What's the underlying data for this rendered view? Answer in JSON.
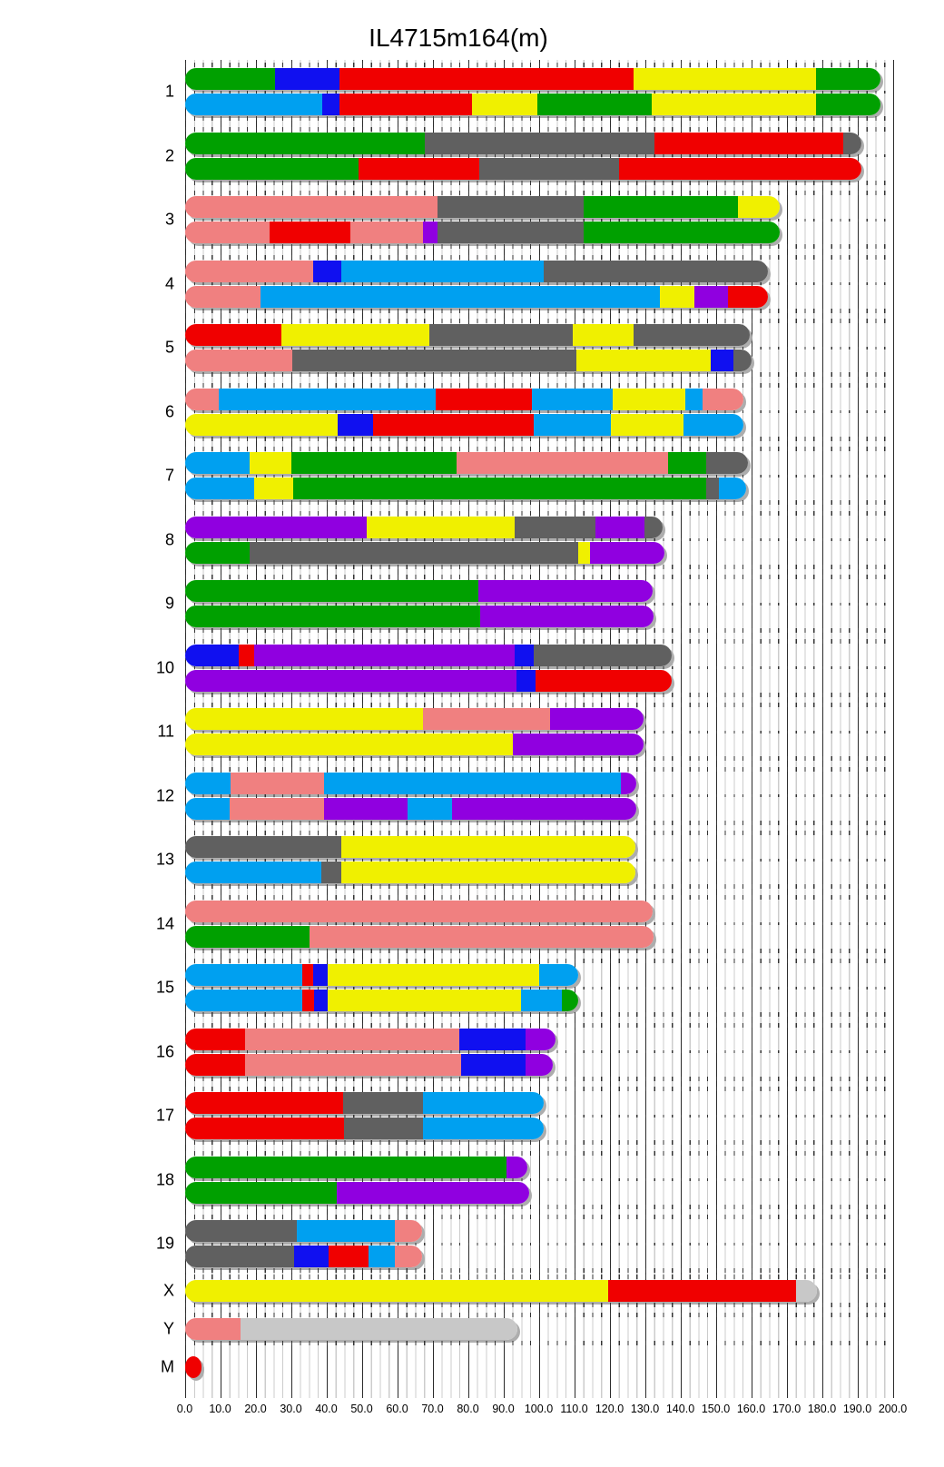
{
  "title": "IL4715m164(m)",
  "axis": {
    "min": 0,
    "max": 200,
    "major_step": 10,
    "minor_step": 2.5,
    "tick_labels": [
      "0.0",
      "10.0",
      "20.0",
      "30.0",
      "40.0",
      "50.0",
      "60.0",
      "70.0",
      "80.0",
      "90.0",
      "100.0",
      "110.0",
      "120.0",
      "130.0",
      "140.0",
      "150.0",
      "160.0",
      "170.0",
      "180.0",
      "190.0",
      "200.0"
    ]
  },
  "palette": {
    "AJ": "#F0F000",
    "B6": "#606060",
    "129": "#F08080",
    "NOD": "#1010F0",
    "NZO": "#00A0F0",
    "CAST": "#00A000",
    "PWK": "#F00000",
    "WSB": "#9000E0",
    "UNK": "#C8C8C8",
    "shadow": "#ADADAD"
  },
  "chart_data": {
    "type": "other",
    "subtype": "karyotype-haplotype-painting",
    "title": "IL4715m164(m)",
    "x_axis_range": [
      0,
      200
    ],
    "grid": true,
    "chromosomes": [
      {
        "name": "1",
        "hap1": [
          {
            "f": "CAST",
            "s": 0,
            "e": 25.6
          },
          {
            "f": "NOD",
            "s": 25.6,
            "e": 43.6
          },
          {
            "f": "PWK",
            "s": 43.6,
            "e": 126.9
          },
          {
            "f": "AJ",
            "s": 126.9,
            "e": 178.4
          },
          {
            "f": "CAST",
            "s": 178.4,
            "e": 196.6
          }
        ],
        "hap2": [
          {
            "f": "NZO",
            "s": 0,
            "e": 38.9
          },
          {
            "f": "NOD",
            "s": 38.9,
            "e": 43.6
          },
          {
            "f": "PWK",
            "s": 43.6,
            "e": 81.2
          },
          {
            "f": "AJ",
            "s": 81.2,
            "e": 99.7
          },
          {
            "f": "CAST",
            "s": 99.7,
            "e": 132
          },
          {
            "f": "AJ",
            "s": 132,
            "e": 178.4
          },
          {
            "f": "CAST",
            "s": 178.4,
            "e": 196.6
          }
        ]
      },
      {
        "name": "2",
        "hap1": [
          {
            "f": "CAST",
            "s": 0,
            "e": 67.8
          },
          {
            "f": "B6",
            "s": 67.8,
            "e": 132.7
          },
          {
            "f": "PWK",
            "s": 132.7,
            "e": 186
          },
          {
            "f": "B6",
            "s": 186,
            "e": 191.2
          }
        ],
        "hap2": [
          {
            "f": "CAST",
            "s": 0,
            "e": 49.2
          },
          {
            "f": "PWK",
            "s": 49.2,
            "e": 83.3
          },
          {
            "f": "B6",
            "s": 83.3,
            "e": 122.7
          },
          {
            "f": "PWK",
            "s": 122.7,
            "e": 191.2
          }
        ]
      },
      {
        "name": "3",
        "hap1": [
          {
            "f": "129",
            "s": 0,
            "e": 71.5
          },
          {
            "f": "B6",
            "s": 71.5,
            "e": 112.6
          },
          {
            "f": "CAST",
            "s": 112.6,
            "e": 156.3
          },
          {
            "f": "AJ",
            "s": 156.3,
            "e": 168
          }
        ],
        "hap2": [
          {
            "f": "129",
            "s": 0,
            "e": 24.1
          },
          {
            "f": "PWK",
            "s": 24.1,
            "e": 46.7
          },
          {
            "f": "129",
            "s": 46.7,
            "e": 67.3
          },
          {
            "f": "WSB",
            "s": 67.3,
            "e": 71.3
          },
          {
            "f": "B6",
            "s": 71.3,
            "e": 112.8
          },
          {
            "f": "CAST",
            "s": 112.8,
            "e": 168
          }
        ]
      },
      {
        "name": "4",
        "hap1": [
          {
            "f": "129",
            "s": 0,
            "e": 36.2
          },
          {
            "f": "NOD",
            "s": 36.2,
            "e": 44.2
          },
          {
            "f": "NZO",
            "s": 44.2,
            "e": 101.3
          },
          {
            "f": "B6",
            "s": 101.3,
            "e": 164.8
          }
        ],
        "hap2": [
          {
            "f": "129",
            "s": 0,
            "e": 21.5
          },
          {
            "f": "NZO",
            "s": 21.5,
            "e": 134.2
          },
          {
            "f": "AJ",
            "s": 134.2,
            "e": 144
          },
          {
            "f": "WSB",
            "s": 144,
            "e": 153.4
          },
          {
            "f": "PWK",
            "s": 153.4,
            "e": 164.8
          }
        ]
      },
      {
        "name": "5",
        "hap1": [
          {
            "f": "PWK",
            "s": 0,
            "e": 27.3
          },
          {
            "f": "AJ",
            "s": 27.3,
            "e": 69.2
          },
          {
            "f": "B6",
            "s": 69.2,
            "e": 109.7
          },
          {
            "f": "AJ",
            "s": 109.7,
            "e": 126.7
          },
          {
            "f": "B6",
            "s": 126.7,
            "e": 159.5
          }
        ],
        "hap2": [
          {
            "f": "129",
            "s": 0,
            "e": 30.4
          },
          {
            "f": "B6",
            "s": 30.4,
            "e": 110.6
          },
          {
            "f": "AJ",
            "s": 110.6,
            "e": 148.7
          },
          {
            "f": "NOD",
            "s": 148.7,
            "e": 155.1
          },
          {
            "f": "B6",
            "s": 155.1,
            "e": 160
          }
        ]
      },
      {
        "name": "6",
        "hap1": [
          {
            "f": "129",
            "s": 0,
            "e": 9.5
          },
          {
            "f": "NZO",
            "s": 9.5,
            "e": 70.8
          },
          {
            "f": "PWK",
            "s": 70.8,
            "e": 98.2
          },
          {
            "f": "NZO",
            "s": 98.2,
            "e": 120.9
          },
          {
            "f": "AJ",
            "s": 120.9,
            "e": 141.5
          },
          {
            "f": "NZO",
            "s": 141.5,
            "e": 146.2
          },
          {
            "f": "129",
            "s": 146.2,
            "e": 157.7
          }
        ],
        "hap2": [
          {
            "f": "AJ",
            "s": 0,
            "e": 43.3
          },
          {
            "f": "NOD",
            "s": 43.3,
            "e": 53.1
          },
          {
            "f": "PWK",
            "s": 53.1,
            "e": 98.6
          },
          {
            "f": "NZO",
            "s": 98.6,
            "e": 120.4
          },
          {
            "f": "AJ",
            "s": 120.4,
            "e": 141
          },
          {
            "f": "NZO",
            "s": 141,
            "e": 157.7
          }
        ]
      },
      {
        "name": "7",
        "hap1": [
          {
            "f": "NZO",
            "s": 0,
            "e": 18.4
          },
          {
            "f": "AJ",
            "s": 18.4,
            "e": 30
          },
          {
            "f": "CAST",
            "s": 30,
            "e": 76.8
          },
          {
            "f": "129",
            "s": 76.8,
            "e": 136.5
          },
          {
            "f": "CAST",
            "s": 136.5,
            "e": 147.4
          },
          {
            "f": "B6",
            "s": 147.4,
            "e": 159
          }
        ],
        "hap2": [
          {
            "f": "NZO",
            "s": 0,
            "e": 19.7
          },
          {
            "f": "AJ",
            "s": 19.7,
            "e": 30.7
          },
          {
            "f": "CAST",
            "s": 30.7,
            "e": 147.4
          },
          {
            "f": "B6",
            "s": 147.4,
            "e": 150.9
          },
          {
            "f": "NZO",
            "s": 150.9,
            "e": 158.6
          }
        ]
      },
      {
        "name": "8",
        "hap1": [
          {
            "f": "WSB",
            "s": 0,
            "e": 51.4
          },
          {
            "f": "AJ",
            "s": 51.4,
            "e": 93.3
          },
          {
            "f": "B6",
            "s": 93.3,
            "e": 116
          },
          {
            "f": "WSB",
            "s": 116,
            "e": 129.8
          },
          {
            "f": "B6",
            "s": 129.8,
            "e": 135.1
          }
        ],
        "hap2": [
          {
            "f": "CAST",
            "s": 0,
            "e": 18.4
          },
          {
            "f": "B6",
            "s": 18.4,
            "e": 111.1
          },
          {
            "f": "AJ",
            "s": 111.1,
            "e": 114.6
          },
          {
            "f": "WSB",
            "s": 114.6,
            "e": 135.5
          }
        ]
      },
      {
        "name": "9",
        "hap1": [
          {
            "f": "CAST",
            "s": 0,
            "e": 83
          },
          {
            "f": "WSB",
            "s": 83,
            "e": 132.2
          }
        ],
        "hap2": [
          {
            "f": "CAST",
            "s": 0,
            "e": 83.4
          },
          {
            "f": "WSB",
            "s": 83.4,
            "e": 132.5
          }
        ]
      },
      {
        "name": "10",
        "hap1": [
          {
            "f": "NOD",
            "s": 0,
            "e": 15.3
          },
          {
            "f": "PWK",
            "s": 15.3,
            "e": 19.7
          },
          {
            "f": "WSB",
            "s": 19.7,
            "e": 93.3
          },
          {
            "f": "NOD",
            "s": 93.3,
            "e": 98.6
          },
          {
            "f": "B6",
            "s": 98.6,
            "e": 137.5
          }
        ],
        "hap2": [
          {
            "f": "WSB",
            "s": 0,
            "e": 93.7
          },
          {
            "f": "NOD",
            "s": 93.7,
            "e": 99
          },
          {
            "f": "PWK",
            "s": 99,
            "e": 137.5
          }
        ]
      },
      {
        "name": "11",
        "hap1": [
          {
            "f": "AJ",
            "s": 0,
            "e": 67.4
          },
          {
            "f": "129",
            "s": 67.4,
            "e": 103.1
          },
          {
            "f": "WSB",
            "s": 103.1,
            "e": 129.5
          }
        ],
        "hap2": [
          {
            "f": "AJ",
            "s": 0,
            "e": 92.8
          },
          {
            "f": "WSB",
            "s": 92.8,
            "e": 129.5
          }
        ]
      },
      {
        "name": "12",
        "hap1": [
          {
            "f": "NZO",
            "s": 0,
            "e": 13
          },
          {
            "f": "129",
            "s": 13,
            "e": 39.3
          },
          {
            "f": "NZO",
            "s": 39.3,
            "e": 123.1
          },
          {
            "f": "WSB",
            "s": 123.1,
            "e": 127.5
          }
        ],
        "hap2": [
          {
            "f": "NZO",
            "s": 0,
            "e": 12.6
          },
          {
            "f": "129",
            "s": 12.6,
            "e": 39.3
          },
          {
            "f": "WSB",
            "s": 39.3,
            "e": 62.9
          },
          {
            "f": "NZO",
            "s": 62.9,
            "e": 75.4
          },
          {
            "f": "WSB",
            "s": 75.4,
            "e": 127.5
          }
        ]
      },
      {
        "name": "13",
        "hap1": [
          {
            "f": "B6",
            "s": 0,
            "e": 44.2
          },
          {
            "f": "AJ",
            "s": 44.2,
            "e": 127.4
          }
        ],
        "hap2": [
          {
            "f": "NZO",
            "s": 0,
            "e": 38.7
          },
          {
            "f": "B6",
            "s": 38.7,
            "e": 44.2
          },
          {
            "f": "AJ",
            "s": 44.2,
            "e": 127.4
          }
        ]
      },
      {
        "name": "14",
        "hap1": [
          {
            "f": "129",
            "s": 0,
            "e": 132.3
          }
        ],
        "hap2": [
          {
            "f": "CAST",
            "s": 0,
            "e": 35.3
          },
          {
            "f": "129",
            "s": 35.3,
            "e": 132.5
          }
        ]
      },
      {
        "name": "15",
        "hap1": [
          {
            "f": "NZO",
            "s": 0,
            "e": 33.3
          },
          {
            "f": "PWK",
            "s": 33.3,
            "e": 36.4
          },
          {
            "f": "NOD",
            "s": 36.4,
            "e": 40.5
          },
          {
            "f": "AJ",
            "s": 40.5,
            "e": 100.2
          },
          {
            "f": "NZO",
            "s": 100.2,
            "e": 111.1
          }
        ],
        "hap2": [
          {
            "f": "NZO",
            "s": 0,
            "e": 33.3
          },
          {
            "f": "PWK",
            "s": 33.3,
            "e": 36.6
          },
          {
            "f": "NOD",
            "s": 36.6,
            "e": 40.5
          },
          {
            "f": "AJ",
            "s": 40.5,
            "e": 95
          },
          {
            "f": "NZO",
            "s": 95,
            "e": 106.6
          },
          {
            "f": "CAST",
            "s": 106.6,
            "e": 111.2
          }
        ]
      },
      {
        "name": "16",
        "hap1": [
          {
            "f": "PWK",
            "s": 0,
            "e": 17
          },
          {
            "f": "129",
            "s": 17,
            "e": 77.6
          },
          {
            "f": "NOD",
            "s": 77.6,
            "e": 96.4
          },
          {
            "f": "WSB",
            "s": 96.4,
            "e": 104.8
          }
        ],
        "hap2": [
          {
            "f": "PWK",
            "s": 0,
            "e": 17
          },
          {
            "f": "129",
            "s": 17,
            "e": 78.1
          },
          {
            "f": "NOD",
            "s": 78.1,
            "e": 96.4
          },
          {
            "f": "WSB",
            "s": 96.4,
            "e": 104
          }
        ]
      },
      {
        "name": "17",
        "hap1": [
          {
            "f": "PWK",
            "s": 0,
            "e": 44.7
          },
          {
            "f": "B6",
            "s": 44.7,
            "e": 67.4
          },
          {
            "f": "NZO",
            "s": 67.4,
            "e": 101.3
          }
        ],
        "hap2": [
          {
            "f": "PWK",
            "s": 0,
            "e": 45.1
          },
          {
            "f": "B6",
            "s": 45.1,
            "e": 67.4
          },
          {
            "f": "NZO",
            "s": 67.4,
            "e": 101.3
          }
        ]
      },
      {
        "name": "18",
        "hap1": [
          {
            "f": "CAST",
            "s": 0,
            "e": 91
          },
          {
            "f": "WSB",
            "s": 91,
            "e": 96.8
          }
        ],
        "hap2": [
          {
            "f": "CAST",
            "s": 0,
            "e": 42.9
          },
          {
            "f": "WSB",
            "s": 42.9,
            "e": 97.3
          }
        ]
      },
      {
        "name": "19",
        "hap1": [
          {
            "f": "B6",
            "s": 0,
            "e": 31.6
          },
          {
            "f": "NZO",
            "s": 31.6,
            "e": 59.4
          },
          {
            "f": "129",
            "s": 59.4,
            "e": 67
          }
        ],
        "hap2": [
          {
            "f": "B6",
            "s": 0,
            "e": 30.9
          },
          {
            "f": "NOD",
            "s": 30.9,
            "e": 40.7
          },
          {
            "f": "PWK",
            "s": 40.7,
            "e": 51.8
          },
          {
            "f": "NZO",
            "s": 51.8,
            "e": 59.4
          },
          {
            "f": "129",
            "s": 59.4,
            "e": 67
          }
        ]
      },
      {
        "name": "X",
        "hap1": [
          {
            "f": "AJ",
            "s": 0,
            "e": 119.5
          },
          {
            "f": "PWK",
            "s": 119.5,
            "e": 172.8
          },
          {
            "f": "UNK",
            "s": 172.8,
            "e": 178.5
          }
        ]
      },
      {
        "name": "Y",
        "hap1": [
          {
            "f": "129",
            "s": 0,
            "e": 15.8
          },
          {
            "f": "UNK",
            "s": 15.8,
            "e": 94
          }
        ]
      },
      {
        "name": "M",
        "hap1": [
          {
            "f": "PWK",
            "s": 0,
            "e": 4.8
          }
        ],
        "dot": true
      }
    ]
  }
}
